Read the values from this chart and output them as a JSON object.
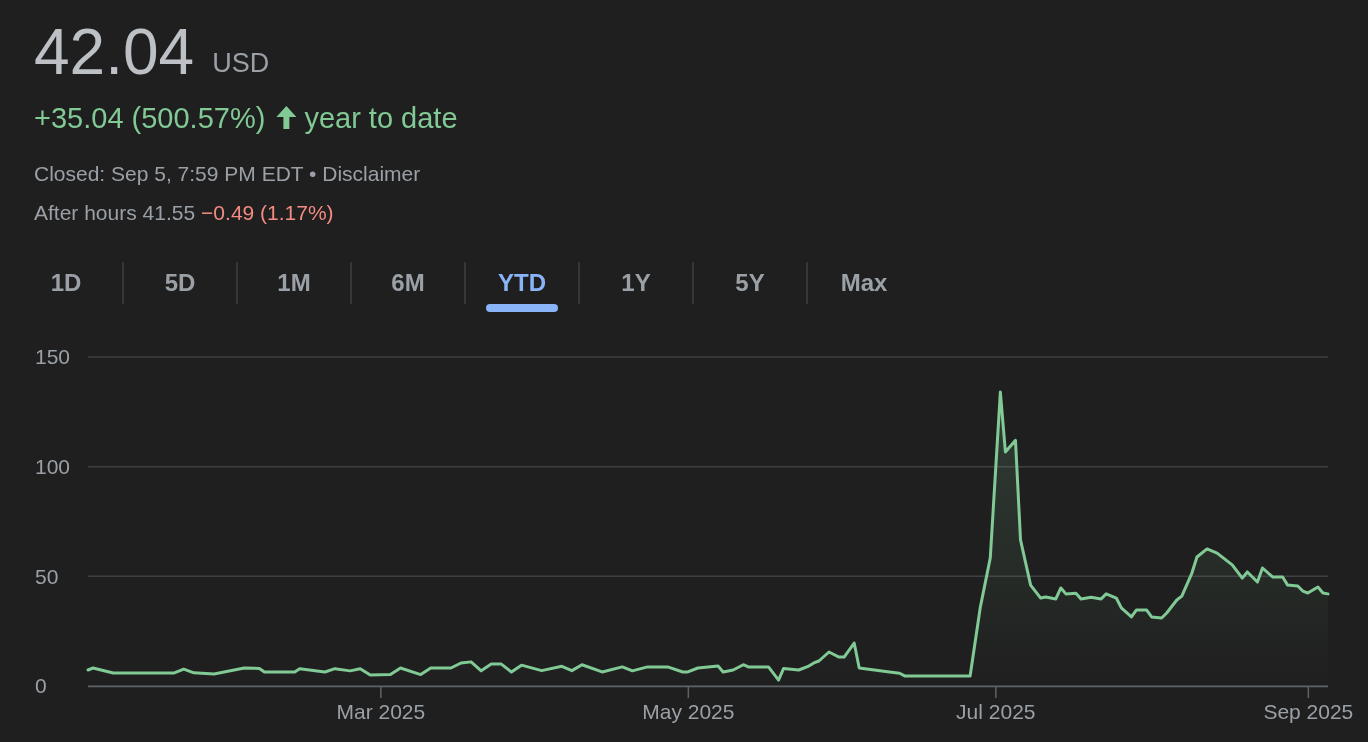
{
  "chart_data": {
    "type": "area",
    "title": "42.04",
    "subtitle": "USD",
    "annotations": [
      "+35.04 (500.57%)",
      "year to date",
      "Closed: Sep 5, 7:59 PM EDT • Disclaimer",
      "After hours 41.55",
      "−0.49 (1.17%)",
      "1D",
      "5D",
      "1M",
      "6M",
      "YTD",
      "1Y",
      "5Y",
      "Max"
    ],
    "x": [
      "2025-01-02",
      "2025-01-03",
      "2025-01-07",
      "2025-01-19",
      "2025-01-21",
      "2025-01-23",
      "2025-01-27",
      "2025-02-02",
      "2025-02-05",
      "2025-02-06",
      "2025-02-12",
      "2025-02-13",
      "2025-02-18",
      "2025-02-20",
      "2025-02-23",
      "2025-02-25",
      "2025-02-27",
      "2025-03-03",
      "2025-03-05",
      "2025-03-09",
      "2025-03-11",
      "2025-03-15",
      "2025-03-17",
      "2025-03-19",
      "2025-03-21",
      "2025-03-23",
      "2025-03-25",
      "2025-03-27",
      "2025-03-29",
      "2025-04-02",
      "2025-04-06",
      "2025-04-08",
      "2025-04-10",
      "2025-04-14",
      "2025-04-18",
      "2025-04-20",
      "2025-04-23",
      "2025-04-27",
      "2025-04-30",
      "2025-05-01",
      "2025-05-03",
      "2025-05-07",
      "2025-05-08",
      "2025-05-10",
      "2025-05-12",
      "2025-05-13",
      "2025-05-17",
      "2025-05-19",
      "2025-05-20",
      "2025-05-23",
      "2025-05-25",
      "2025-05-26",
      "2025-05-27",
      "2025-05-29",
      "2025-05-31",
      "2025-06-01",
      "2025-06-03",
      "2025-06-04",
      "2025-06-07",
      "2025-06-10",
      "2025-06-12",
      "2025-06-13",
      "2025-06-15",
      "2025-06-20",
      "2025-06-26",
      "2025-06-28",
      "2025-06-30",
      "2025-07-02",
      "2025-07-03",
      "2025-07-05",
      "2025-07-06",
      "2025-07-08",
      "2025-07-10",
      "2025-07-11",
      "2025-07-13",
      "2025-07-14",
      "2025-07-15",
      "2025-07-17",
      "2025-07-18",
      "2025-07-20",
      "2025-07-22",
      "2025-07-23",
      "2025-07-25",
      "2025-07-26",
      "2025-07-28",
      "2025-07-29",
      "2025-07-31",
      "2025-08-01",
      "2025-08-03",
      "2025-08-04",
      "2025-08-06",
      "2025-08-07",
      "2025-08-09",
      "2025-08-10",
      "2025-08-12",
      "2025-08-14",
      "2025-08-17",
      "2025-08-19",
      "2025-08-20",
      "2025-08-22",
      "2025-08-23",
      "2025-08-25",
      "2025-08-27",
      "2025-08-28",
      "2025-08-30",
      "2025-08-31",
      "2025-09-01",
      "2025-09-03",
      "2025-09-04",
      "2025-09-05"
    ],
    "series": [
      {
        "color": "#81c995",
        "values": [
          7.3,
          8.2,
          5.9,
          5.9,
          7.7,
          6,
          5.5,
          8.2,
          8,
          6.4,
          6.4,
          7.9,
          6.4,
          7.9,
          6.9,
          7.9,
          5,
          5.2,
          8.2,
          5.2,
          8.2,
          8.2,
          10.5,
          11,
          6.9,
          10,
          10,
          6.4,
          9.5,
          7,
          9,
          7,
          9.7,
          6.4,
          8.7,
          6.9,
          8.7,
          8.7,
          6.4,
          6.4,
          8.2,
          9.1,
          6.4,
          7.3,
          9.7,
          8.7,
          8.7,
          2.7,
          8,
          7.3,
          9.1,
          10.5,
          11.4,
          15.5,
          13.2,
          13.2,
          19.6,
          8.2,
          7.3,
          6.4,
          5.8,
          4.6,
          4.6,
          4.6,
          4.6,
          35.6,
          58.4,
          134,
          106.7,
          112,
          66.6,
          46,
          40.1,
          40.6,
          39.7,
          44.7,
          42,
          42.3,
          39.7,
          40.5,
          39.7,
          42,
          40.1,
          35.6,
          31.5,
          34.7,
          34.7,
          31.5,
          31,
          33.3,
          39.2,
          41,
          51.5,
          58.8,
          62.5,
          60.6,
          55.2,
          49.2,
          52,
          47.4,
          53.8,
          49.7,
          49.7,
          46,
          45.6,
          43.3,
          42.4,
          45.1,
          42.4,
          42
        ]
      }
    ],
    "xlim": [
      "2025-01-02",
      "2025-09-05"
    ],
    "xticks": [
      {
        "value": "2025-03-01",
        "label": "Mar 2025"
      },
      {
        "value": "2025-05-01",
        "label": "May 2025"
      },
      {
        "value": "2025-07-01",
        "label": "Jul 2025"
      },
      {
        "value": "2025-09-01",
        "label": "Sep 2025"
      }
    ],
    "ylim": [
      0,
      150
    ],
    "yticks": [
      0,
      50,
      100,
      150
    ],
    "grid": "y"
  }
}
